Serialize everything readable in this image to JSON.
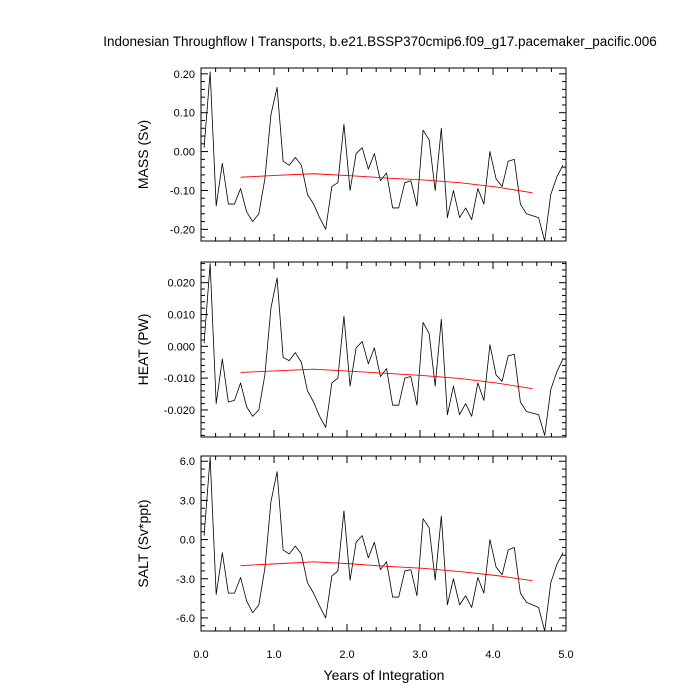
{
  "title": "Indonesian Throughflow I Transports, b.e21.BSSP370cmip6.f09_g17.pacemaker_pacific.006",
  "colors": {
    "data": "#000000",
    "trend": "#ff0000",
    "background": "#ffffff",
    "axes": "#000000"
  },
  "chart_data": [
    {
      "type": "line",
      "name": "mass",
      "ylabel": "MASS (Sv)",
      "xlabel": "",
      "xlim": [
        0.0,
        5.0
      ],
      "ylim": [
        -0.23,
        0.215
      ],
      "yticks": [
        0.2,
        0.1,
        0.0,
        -0.1,
        -0.2
      ],
      "ytick_labels": [
        "0.20",
        "0.10",
        "0.00",
        "-0.10",
        "-0.20"
      ],
      "series": [
        {
          "name": "monthly",
          "x": [
            0.042,
            0.125,
            0.208,
            0.292,
            0.375,
            0.458,
            0.542,
            0.625,
            0.708,
            0.792,
            0.875,
            0.958,
            1.042,
            1.125,
            1.208,
            1.292,
            1.375,
            1.458,
            1.542,
            1.625,
            1.708,
            1.792,
            1.875,
            1.958,
            2.042,
            2.125,
            2.208,
            2.292,
            2.375,
            2.458,
            2.542,
            2.625,
            2.708,
            2.792,
            2.875,
            2.958,
            3.042,
            3.125,
            3.208,
            3.292,
            3.375,
            3.458,
            3.542,
            3.625,
            3.708,
            3.792,
            3.875,
            3.958,
            4.042,
            4.125,
            4.208,
            4.292,
            4.375,
            4.458,
            4.542,
            4.625,
            4.708,
            4.792,
            4.875,
            4.958
          ],
          "values": [
            0.01,
            0.205,
            -0.14,
            -0.03,
            -0.135,
            -0.135,
            -0.095,
            -0.155,
            -0.18,
            -0.16,
            -0.07,
            0.095,
            0.165,
            -0.025,
            -0.035,
            -0.015,
            -0.035,
            -0.11,
            -0.135,
            -0.17,
            -0.2,
            -0.09,
            -0.08,
            0.07,
            -0.1,
            -0.005,
            0.01,
            -0.045,
            -0.005,
            -0.075,
            -0.055,
            -0.145,
            -0.145,
            -0.08,
            -0.075,
            -0.14,
            0.055,
            0.03,
            -0.1,
            0.06,
            -0.17,
            -0.1,
            -0.17,
            -0.145,
            -0.175,
            -0.095,
            -0.135,
            0.0,
            -0.07,
            -0.09,
            -0.025,
            -0.02,
            -0.135,
            -0.16,
            -0.165,
            -0.17,
            -0.23,
            -0.11,
            -0.065,
            -0.035
          ]
        },
        {
          "name": "trend",
          "x": [
            0.542,
            1.042,
            1.542,
            2.042,
            2.542,
            3.042,
            3.542,
            4.042,
            4.542
          ],
          "values": [
            -0.066,
            -0.061,
            -0.057,
            -0.062,
            -0.068,
            -0.073,
            -0.08,
            -0.091,
            -0.106
          ]
        }
      ]
    },
    {
      "type": "line",
      "name": "heat",
      "ylabel": "HEAT (PW)",
      "xlabel": "",
      "xlim": [
        0.0,
        5.0
      ],
      "ylim": [
        -0.0285,
        0.0265
      ],
      "yticks": [
        0.02,
        0.01,
        0.0,
        -0.01,
        -0.02
      ],
      "ytick_labels": [
        "0.020",
        "0.010",
        "0.000",
        "-0.010",
        "-0.020"
      ],
      "series": [
        {
          "name": "monthly",
          "x": [
            0.042,
            0.125,
            0.208,
            0.292,
            0.375,
            0.458,
            0.542,
            0.625,
            0.708,
            0.792,
            0.875,
            0.958,
            1.042,
            1.125,
            1.208,
            1.292,
            1.375,
            1.458,
            1.542,
            1.625,
            1.708,
            1.792,
            1.875,
            1.958,
            2.042,
            2.125,
            2.208,
            2.292,
            2.375,
            2.458,
            2.542,
            2.625,
            2.708,
            2.792,
            2.875,
            2.958,
            3.042,
            3.125,
            3.208,
            3.292,
            3.375,
            3.458,
            3.542,
            3.625,
            3.708,
            3.792,
            3.875,
            3.958,
            4.042,
            4.125,
            4.208,
            4.292,
            4.375,
            4.458,
            4.542,
            4.625,
            4.708,
            4.792,
            4.875,
            4.958
          ],
          "values": [
            0.001,
            0.026,
            -0.018,
            -0.004,
            -0.0175,
            -0.017,
            -0.0115,
            -0.019,
            -0.022,
            -0.02,
            -0.009,
            0.012,
            0.0215,
            -0.0035,
            -0.0045,
            -0.002,
            -0.005,
            -0.014,
            -0.0175,
            -0.022,
            -0.0255,
            -0.0115,
            -0.01,
            0.0095,
            -0.0125,
            -0.0005,
            0.0015,
            -0.0055,
            -0.0005,
            -0.0095,
            -0.007,
            -0.0185,
            -0.0185,
            -0.01,
            -0.0095,
            -0.0185,
            0.0075,
            0.004,
            -0.0125,
            0.0085,
            -0.0215,
            -0.0125,
            -0.0215,
            -0.018,
            -0.022,
            -0.0115,
            -0.017,
            0.0005,
            -0.009,
            -0.011,
            -0.003,
            -0.0025,
            -0.0175,
            -0.0205,
            -0.021,
            -0.0215,
            -0.028,
            -0.0135,
            -0.008,
            -0.004
          ]
        },
        {
          "name": "trend",
          "x": [
            0.542,
            1.042,
            1.542,
            2.042,
            2.542,
            3.042,
            3.542,
            4.042,
            4.542
          ],
          "values": [
            -0.0082,
            -0.0077,
            -0.0072,
            -0.0078,
            -0.0085,
            -0.0092,
            -0.0101,
            -0.0115,
            -0.0133
          ]
        }
      ]
    },
    {
      "type": "line",
      "name": "salt",
      "ylabel": "SALT (Sv*ppt)",
      "xlabel": "Years of Integration",
      "xlim": [
        0.0,
        5.0
      ],
      "ylim": [
        -7.0,
        6.4
      ],
      "yticks": [
        6.0,
        3.0,
        0.0,
        -3.0,
        -6.0
      ],
      "ytick_labels": [
        "6.0",
        "3.0",
        "0.0",
        "-3.0",
        "-6.0"
      ],
      "xticks": [
        0.0,
        1.0,
        2.0,
        3.0,
        4.0,
        5.0
      ],
      "xtick_labels": [
        "0.0",
        "1.0",
        "2.0",
        "3.0",
        "4.0",
        "5.0"
      ],
      "series": [
        {
          "name": "monthly",
          "x": [
            0.042,
            0.125,
            0.208,
            0.292,
            0.375,
            0.458,
            0.542,
            0.625,
            0.708,
            0.792,
            0.875,
            0.958,
            1.042,
            1.125,
            1.208,
            1.292,
            1.375,
            1.458,
            1.542,
            1.625,
            1.708,
            1.792,
            1.875,
            1.958,
            2.042,
            2.125,
            2.208,
            2.292,
            2.375,
            2.458,
            2.542,
            2.625,
            2.708,
            2.792,
            2.875,
            2.958,
            3.042,
            3.125,
            3.208,
            3.292,
            3.375,
            3.458,
            3.542,
            3.625,
            3.708,
            3.792,
            3.875,
            3.958,
            4.042,
            4.125,
            4.208,
            4.292,
            4.375,
            4.458,
            4.542,
            4.625,
            4.708,
            4.792,
            4.875,
            4.958
          ],
          "values": [
            0.3,
            6.3,
            -4.2,
            -1.0,
            -4.1,
            -4.1,
            -2.9,
            -4.7,
            -5.6,
            -5.0,
            -2.2,
            2.9,
            5.2,
            -0.8,
            -1.1,
            -0.5,
            -1.1,
            -3.3,
            -4.1,
            -5.1,
            -6.0,
            -2.8,
            -2.4,
            2.2,
            -3.1,
            -0.2,
            0.3,
            -1.4,
            -0.2,
            -2.3,
            -1.7,
            -4.4,
            -4.4,
            -2.4,
            -2.3,
            -4.3,
            1.6,
            0.9,
            -3.1,
            1.8,
            -5.0,
            -3.0,
            -5.0,
            -4.3,
            -5.2,
            -2.9,
            -4.1,
            0.0,
            -2.1,
            -2.7,
            -0.8,
            -0.6,
            -4.1,
            -4.8,
            -5.0,
            -5.2,
            -7.0,
            -3.3,
            -1.9,
            -1.0
          ]
        },
        {
          "name": "trend",
          "x": [
            0.542,
            1.042,
            1.542,
            2.042,
            2.542,
            3.042,
            3.542,
            4.042,
            4.542
          ],
          "values": [
            -2.0,
            -1.85,
            -1.7,
            -1.85,
            -2.05,
            -2.2,
            -2.45,
            -2.75,
            -3.15
          ]
        }
      ]
    }
  ]
}
